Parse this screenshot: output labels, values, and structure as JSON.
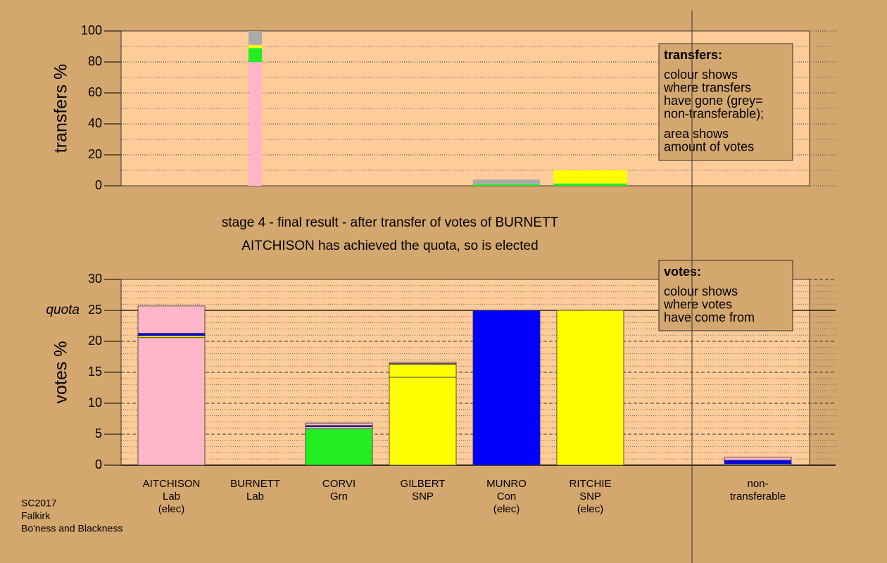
{
  "chart_data": [
    {
      "type": "bar",
      "stacked": true,
      "y_label": "transfers %",
      "ylim": [
        0,
        100
      ],
      "yticks": [
        0,
        20,
        40,
        60,
        80,
        100
      ],
      "minor_yticks": [
        10,
        30,
        50,
        70,
        90
      ],
      "grid": true,
      "widths": [
        0,
        0.2,
        0,
        0,
        1,
        1.1,
        0,
        0
      ],
      "series": [
        {
          "colors": [
            "#ffb6c8",
            "#ffb6c8",
            "#ffb6c8",
            "#ffb6c8",
            "#22ee22",
            "#22ee22",
            "#aaaaaa",
            "#aaaaaa"
          ],
          "values": [
            0,
            80,
            0,
            0,
            1,
            1.5,
            0,
            0
          ]
        },
        {
          "colors": [
            "#22ee22",
            "#22ee22",
            "#22ee22",
            "#22ee22",
            "#aaaaaa",
            "#ffff00",
            "#aaaaaa",
            "#aaaaaa"
          ],
          "values": [
            0,
            9,
            0,
            0,
            3,
            8.5,
            0,
            0
          ]
        },
        {
          "colors": [
            "#ffff00",
            "#ffff00",
            "#ffff00",
            "#ffff00",
            "#ffff00",
            "#ffff00",
            "#ffff00",
            "#ffff00"
          ],
          "values": [
            0,
            2,
            0,
            0,
            0,
            0,
            0,
            0
          ]
        },
        {
          "colors": [
            "#aaaaaa",
            "#aaaaaa",
            "#aaaaaa",
            "#aaaaaa",
            "#aaaaaa",
            "#aaaaaa",
            "#aaaaaa",
            "#aaaaaa"
          ],
          "values": [
            0,
            9,
            0,
            0,
            0,
            0,
            0,
            0
          ]
        }
      ],
      "annotation": {
        "title": "transfers:",
        "paragraphs": [
          [
            "colour shows",
            "where transfers",
            "have gone (grey=",
            "non-transferable);"
          ],
          [
            "area shows",
            "amount of votes"
          ]
        ]
      }
    },
    {
      "type": "bar",
      "stacked": true,
      "title": "stage 4 - final result - after transfer of votes of BURNETT",
      "subtitle": "AITCHISON has achieved the quota, so is elected",
      "y_label": "votes %",
      "categories": [
        [
          "AITCHISON",
          "Lab",
          "(elec)"
        ],
        [
          "BURNETT",
          "Lab"
        ],
        [
          "CORVI",
          "Grn"
        ],
        [
          "GILBERT",
          "SNP"
        ],
        [
          "MUNRO",
          "Con",
          "(elec)"
        ],
        [
          "RITCHIE",
          "SNP",
          "(elec)"
        ],
        null,
        [
          "non-",
          "transferable"
        ]
      ],
      "ylim": [
        0,
        30
      ],
      "yticks": [
        0,
        5,
        10,
        15,
        20,
        25,
        30
      ],
      "minor_yticks": [
        1,
        2,
        3,
        4,
        6,
        7,
        8,
        9,
        11,
        12,
        13,
        14,
        16,
        17,
        18,
        19,
        21,
        22,
        23,
        24,
        26,
        27,
        28,
        29
      ],
      "grid": true,
      "quota": {
        "value": 25,
        "label": "quota"
      },
      "series": [
        {
          "colors": [
            "#ffb6c8",
            "#ffb6c8",
            "#22ee22",
            "#ffff00",
            "#0000ff",
            "#ffff00",
            "#aaaaaa",
            "#aaaaaa"
          ],
          "values": [
            20.6,
            0,
            5.9,
            14.2,
            25,
            25,
            0,
            0.2
          ]
        },
        {
          "colors": [
            "#ffff00",
            "#ffff00",
            "#ffb6c8",
            "#ffff00",
            "#ffff00",
            "#ffff00",
            "#0000ff",
            "#0000ff"
          ],
          "values": [
            0.3,
            0,
            0.3,
            2.1,
            0,
            0,
            0,
            0.6
          ]
        },
        {
          "colors": [
            "#0000ff",
            "#0000ff",
            "#0000ff",
            "#0000ff",
            "#0000ff",
            "#0000ff",
            "#ffb6c8",
            "#ffb6c8"
          ],
          "values": [
            0.4,
            0,
            0.2,
            0.1,
            0,
            0,
            0,
            0.5
          ]
        },
        {
          "colors": [
            "#ffb6c8",
            "#ffb6c8",
            "#ffb6c8",
            "#ffb6c8",
            "#ffb6c8",
            "#ffb6c8",
            "#ffb6c8",
            "#ffb6c8"
          ],
          "values": [
            4.4,
            0,
            0.4,
            0.2,
            0,
            0,
            0,
            0
          ]
        }
      ],
      "annotation": {
        "title": "votes:",
        "paragraphs": [
          [
            "colour shows",
            "where votes",
            "have come from"
          ]
        ]
      }
    }
  ],
  "footer": [
    "SC2017",
    "Falkirk",
    "Bo'ness and Blackness"
  ]
}
